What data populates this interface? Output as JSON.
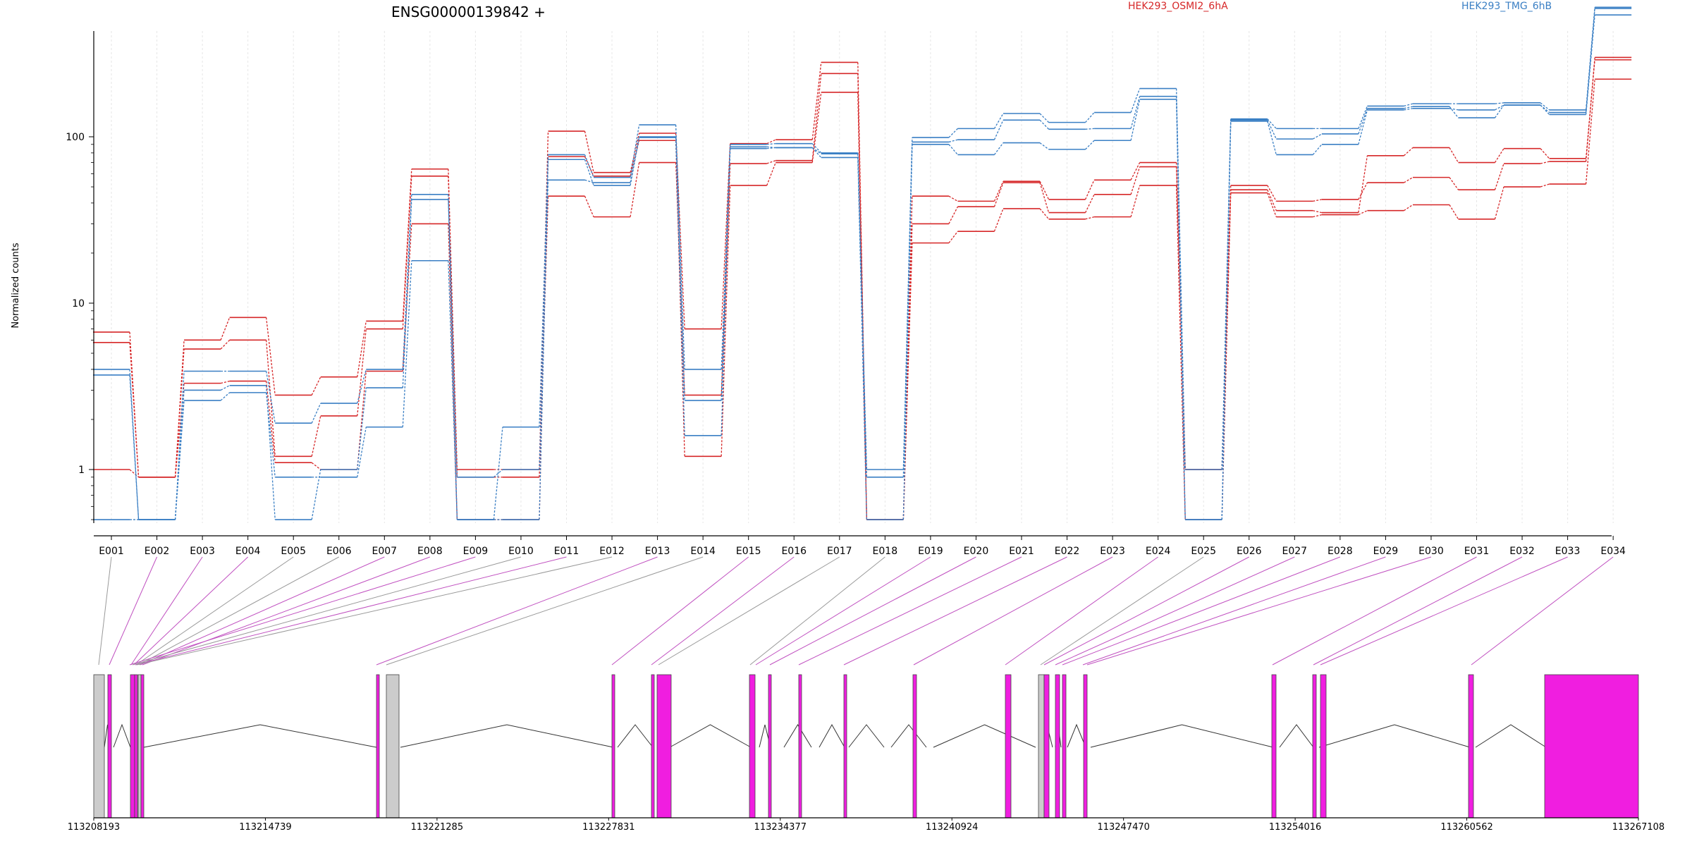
{
  "chart_data": {
    "type": "line",
    "title": "ENSG00000139842 +",
    "ylabel": "Normalized counts",
    "yscale": "log",
    "ylim": [
      0.5,
      800
    ],
    "y_ticks": [
      1,
      10,
      100
    ],
    "y_tick_labels": [
      "1",
      "10",
      "100"
    ],
    "legend": [
      {
        "name": "HEK293_OSMI2_6hA",
        "color": "#d62728"
      },
      {
        "name": "HEK293_TMG_6hB",
        "color": "#3a7fc4"
      }
    ],
    "legend_placement": "top-right",
    "categories": [
      "E001",
      "E002",
      "E003",
      "E004",
      "E005",
      "E006",
      "E007",
      "E008",
      "E009",
      "E010",
      "E011",
      "E012",
      "E013",
      "E014",
      "E015",
      "E016",
      "E017",
      "E018",
      "E019",
      "E020",
      "E021",
      "E022",
      "E023",
      "E024",
      "E025",
      "E026",
      "E027",
      "E028",
      "E029",
      "E030",
      "E031",
      "E032",
      "E033",
      "E034"
    ],
    "series": [
      {
        "group": "HEK293_OSMI2_6hA",
        "color": "#d62728",
        "values": [
          6.7,
          0.9,
          6.0,
          8.2,
          2.8,
          3.6,
          7.8,
          64,
          1.0,
          1.0,
          108,
          61,
          105,
          7.0,
          91,
          96,
          280,
          0.5,
          44,
          41,
          54,
          42,
          55,
          70,
          1.0,
          51,
          41,
          42,
          53,
          57,
          48,
          69,
          71,
          300
        ]
      },
      {
        "group": "HEK293_OSMI2_6hA",
        "color": "#d62728",
        "values": [
          5.8,
          0.9,
          5.3,
          6.0,
          1.2,
          2.1,
          7.0,
          58,
          0.9,
          0.9,
          44,
          33,
          70,
          2.8,
          69,
          72,
          240,
          0.5,
          30,
          38,
          53,
          35,
          45,
          66,
          1.0,
          48,
          36,
          35,
          77,
          86,
          70,
          85,
          74,
          290
        ]
      },
      {
        "group": "HEK293_OSMI2_6hA",
        "color": "#d62728",
        "values": [
          1.0,
          0.9,
          3.3,
          3.4,
          1.1,
          1.0,
          3.9,
          30,
          0.5,
          0.5,
          76,
          58,
          95,
          1.2,
          51,
          70,
          185,
          0.5,
          23,
          27,
          37,
          32,
          33,
          51,
          0.5,
          46,
          33,
          34,
          36,
          39,
          32,
          50,
          52,
          222
        ]
      },
      {
        "group": "HEK293_TMG_6hB",
        "color": "#3a7fc4",
        "values": [
          4.0,
          0.5,
          3.9,
          3.9,
          1.9,
          2.5,
          4.0,
          45,
          0.5,
          1.8,
          78,
          57,
          118,
          4.0,
          90,
          91,
          80,
          1.0,
          99,
          112,
          138,
          122,
          140,
          195,
          1.0,
          128,
          112,
          112,
          153,
          158,
          158,
          160,
          145,
          600
        ]
      },
      {
        "group": "HEK293_TMG_6hB",
        "color": "#3a7fc4",
        "values": [
          3.7,
          0.5,
          3.0,
          3.2,
          0.5,
          1.0,
          3.1,
          42,
          0.9,
          1.0,
          55,
          53,
          100,
          2.6,
          85,
          86,
          79,
          0.9,
          93,
          96,
          126,
          111,
          112,
          175,
          0.5,
          126,
          97,
          104,
          148,
          152,
          130,
          155,
          140,
          590
        ]
      },
      {
        "group": "HEK293_TMG_6hB",
        "color": "#3a7fc4",
        "values": [
          0.5,
          0.5,
          2.6,
          2.9,
          0.9,
          0.9,
          1.8,
          18,
          0.5,
          0.5,
          73,
          51,
          99,
          1.6,
          87,
          86,
          75,
          0.5,
          90,
          78,
          92,
          84,
          95,
          168,
          0.5,
          124,
          78,
          90,
          145,
          148,
          145,
          155,
          136,
          540
        ]
      }
    ],
    "gene_model": {
      "x_tick_labels": [
        "113208193",
        "113214739",
        "113221285",
        "113227831",
        "113234377",
        "113240924",
        "113247470",
        "113254016",
        "113260562",
        "113267108"
      ],
      "exon_colors": {
        "counted": "#f01ee0",
        "other": "#cccccc"
      }
    },
    "grid": "vertical"
  }
}
